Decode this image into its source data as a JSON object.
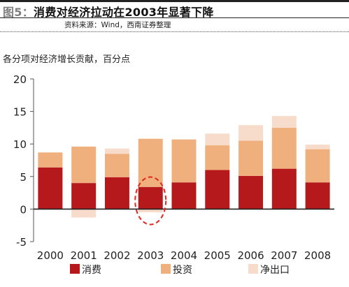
{
  "header": {
    "fig_tag": "图5：",
    "title": "消费对经济拉动在2003年显著下降",
    "source": "资料来源：Wind，西南证券整理"
  },
  "colors": {
    "consumption": "#b5191c",
    "investment": "#f0b07e",
    "net_export": "#f8dccb",
    "highlight": "#e2251f"
  },
  "chart_data": {
    "type": "bar",
    "stacked": true,
    "title": "",
    "ylabel": "各分项对经济增长贡献，百分点",
    "xlabel": "",
    "categories": [
      "2000",
      "2001",
      "2002",
      "2003",
      "2004",
      "2005",
      "2006",
      "2007",
      "2008"
    ],
    "series": [
      {
        "name": "消费",
        "values": [
          6.4,
          4.0,
          4.9,
          3.4,
          4.1,
          6.0,
          5.1,
          6.2,
          4.1
        ]
      },
      {
        "name": "投资",
        "values": [
          2.3,
          5.6,
          3.6,
          7.4,
          6.6,
          3.8,
          5.4,
          6.3,
          5.1
        ]
      },
      {
        "name": "净出口",
        "values": [
          0.0,
          -1.3,
          0.8,
          -0.5,
          0.0,
          1.8,
          2.4,
          1.8,
          0.7
        ]
      }
    ],
    "ylim": [
      -5,
      20
    ],
    "yticks": [
      -5,
      0,
      5,
      10,
      15,
      20
    ],
    "grid": false,
    "legend_position": "bottom",
    "annotation": {
      "category": "2003",
      "shape": "dashed-ellipse",
      "around_series": "消费"
    }
  }
}
